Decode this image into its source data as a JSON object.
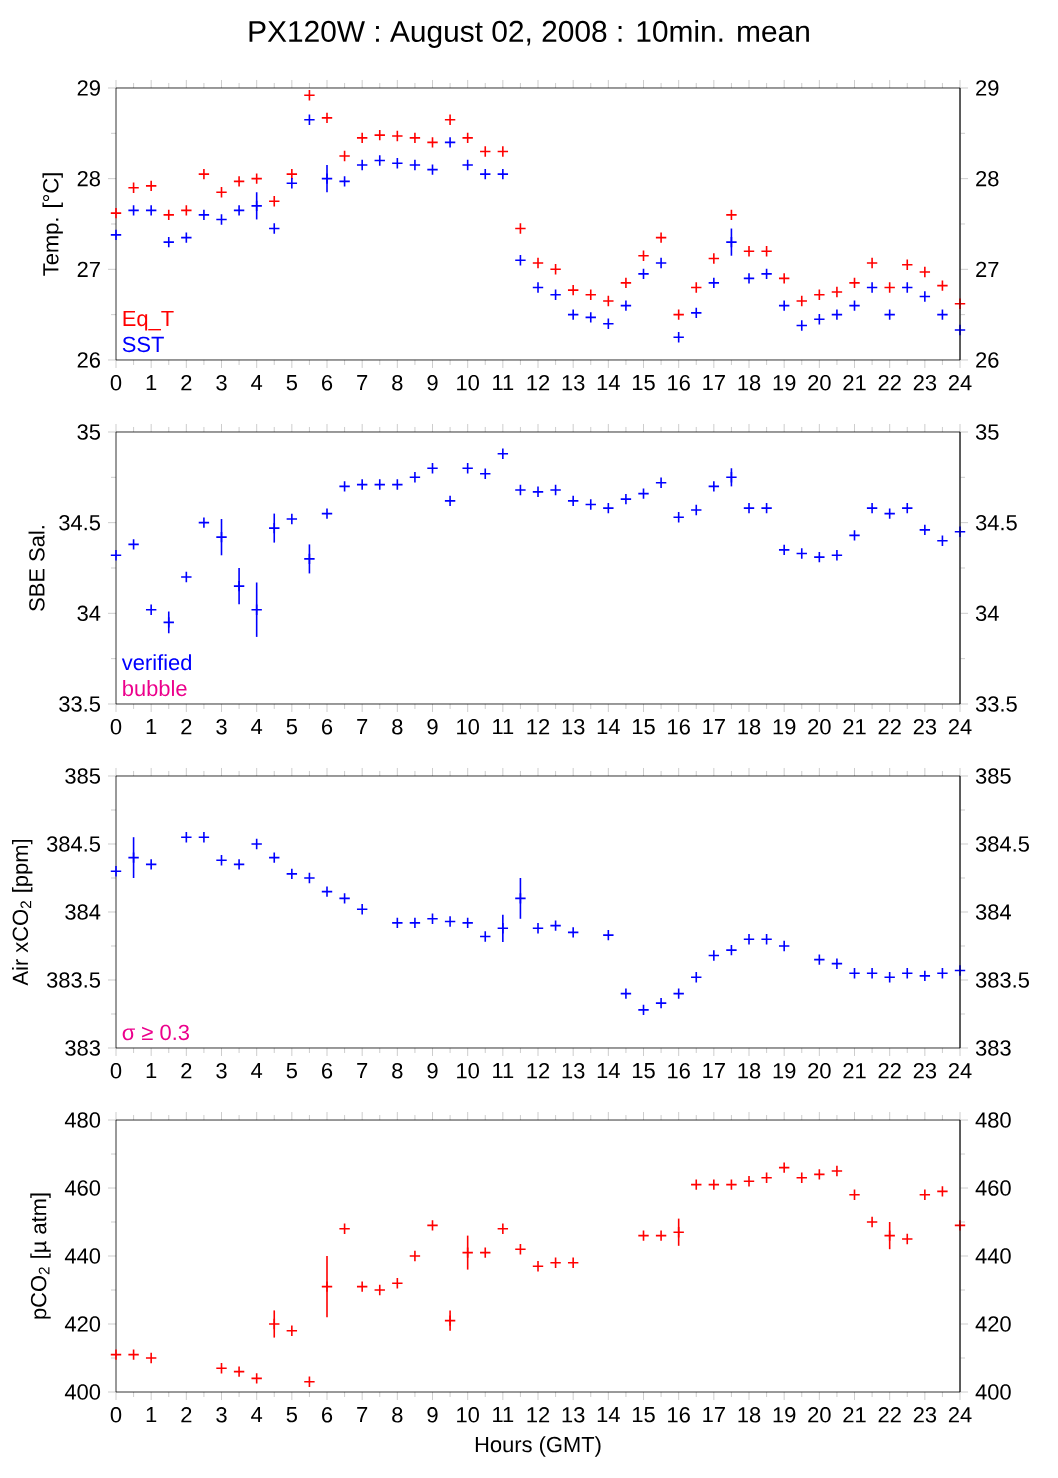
{
  "chart_data": [
    {
      "type": "scatter",
      "title": "PX120W : August 02, 2008 : 10min. mean",
      "ylabel": "Temp. [°C]",
      "marker": "cross",
      "legend": "bottom left",
      "x": [
        0,
        0.5,
        1,
        1.5,
        2,
        2.5,
        3,
        3.5,
        4,
        4.5,
        5,
        5.5,
        6,
        6.5,
        7,
        7.5,
        8,
        8.5,
        9,
        9.5,
        10,
        10.5,
        11,
        11.5,
        12,
        12.5,
        13,
        13.5,
        14,
        14.5,
        15,
        15.5,
        16,
        16.5,
        17,
        17.5,
        18,
        18.5,
        19,
        19.5,
        20,
        20.5,
        21,
        21.5,
        22,
        22.5,
        23,
        23.5,
        24
      ],
      "xlim": [
        0,
        24
      ],
      "xticks": [
        0,
        1,
        2,
        3,
        4,
        5,
        6,
        7,
        8,
        9,
        10,
        11,
        12,
        13,
        14,
        15,
        16,
        17,
        18,
        19,
        20,
        21,
        22,
        23,
        24
      ],
      "ylim": [
        26,
        29
      ],
      "yticks": [
        26,
        27,
        28,
        29
      ],
      "y2lim": [
        26,
        29
      ],
      "y2ticks": [
        26,
        27,
        28,
        29
      ],
      "series": [
        {
          "name": "Eq_T",
          "color": "#ff0000",
          "values": [
            27.62,
            27.9,
            27.92,
            27.6,
            27.65,
            28.05,
            27.85,
            27.97,
            28.0,
            27.75,
            28.05,
            28.92,
            28.67,
            28.25,
            28.45,
            28.48,
            28.47,
            28.45,
            28.4,
            28.65,
            28.45,
            28.3,
            28.3,
            27.45,
            27.07,
            27.0,
            26.77,
            26.72,
            26.65,
            26.85,
            27.15,
            27.35,
            26.5,
            26.8,
            27.12,
            27.6,
            27.2,
            27.2,
            26.9,
            26.65,
            26.72,
            26.75,
            26.85,
            27.07,
            26.8,
            27.05,
            26.97,
            26.82,
            26.62
          ]
        },
        {
          "name": "SST",
          "color": "#0000ff",
          "values": [
            27.38,
            27.65,
            27.65,
            27.3,
            27.35,
            27.6,
            27.55,
            27.65,
            27.7,
            27.45,
            27.95,
            28.65,
            28.0,
            27.97,
            28.15,
            28.2,
            28.17,
            28.15,
            28.1,
            28.4,
            28.15,
            28.05,
            28.05,
            27.1,
            26.8,
            26.72,
            26.5,
            26.47,
            26.4,
            26.6,
            26.95,
            27.07,
            26.25,
            26.52,
            26.85,
            27.3,
            26.9,
            26.95,
            26.6,
            26.38,
            26.45,
            26.5,
            26.6,
            26.8,
            26.5,
            26.8,
            26.7,
            26.5,
            26.33
          ],
          "errors": [
            null,
            null,
            null,
            null,
            null,
            null,
            null,
            null,
            0.15,
            null,
            null,
            null,
            0.15,
            null,
            null,
            null,
            null,
            null,
            null,
            null,
            null,
            null,
            null,
            null,
            null,
            null,
            null,
            null,
            null,
            null,
            null,
            null,
            null,
            null,
            null,
            0.15,
            null,
            null,
            null,
            null,
            null,
            null,
            null,
            null,
            null,
            null,
            null,
            null,
            null
          ]
        }
      ]
    },
    {
      "type": "scatter",
      "ylabel": "SBE Sal.",
      "marker": "cross",
      "legend": "bottom left",
      "annotations": [
        "bubble"
      ],
      "x": [
        0,
        0.5,
        1,
        1.5,
        2,
        2.5,
        3,
        3.5,
        4,
        4.5,
        5,
        5.5,
        6,
        6.5,
        7,
        7.5,
        8,
        8.5,
        9,
        9.5,
        10,
        10.5,
        11,
        11.5,
        12,
        12.5,
        13,
        13.5,
        14,
        14.5,
        15,
        15.5,
        16,
        16.5,
        17,
        17.5,
        18,
        18.5,
        19,
        19.5,
        20,
        20.5,
        21,
        21.5,
        22,
        22.5,
        23,
        23.5,
        24
      ],
      "xlim": [
        0,
        24
      ],
      "xticks": [
        0,
        1,
        2,
        3,
        4,
        5,
        6,
        7,
        8,
        9,
        10,
        11,
        12,
        13,
        14,
        15,
        16,
        17,
        18,
        19,
        20,
        21,
        22,
        23,
        24
      ],
      "ylim": [
        33.5,
        35
      ],
      "yticks": [
        33.5,
        34,
        34.5,
        35
      ],
      "y2lim": [
        33.5,
        35
      ],
      "y2ticks": [
        33.5,
        34,
        34.5,
        35
      ],
      "series": [
        {
          "name": "verified",
          "color": "#0000ff",
          "values": [
            34.32,
            34.38,
            34.02,
            33.95,
            34.2,
            34.5,
            34.42,
            34.15,
            34.02,
            34.47,
            34.52,
            34.3,
            34.55,
            34.7,
            34.71,
            34.71,
            34.71,
            34.75,
            34.8,
            34.62,
            34.8,
            34.77,
            34.88,
            34.68,
            34.67,
            34.68,
            34.62,
            34.6,
            34.58,
            34.63,
            34.66,
            34.72,
            34.53,
            34.57,
            34.7,
            34.75,
            34.58,
            34.58,
            34.35,
            34.33,
            34.31,
            34.32,
            34.43,
            34.58,
            34.55,
            34.58,
            34.46,
            34.4,
            34.45
          ],
          "errors": [
            null,
            null,
            null,
            0.06,
            null,
            null,
            0.1,
            0.1,
            0.15,
            0.08,
            null,
            0.08,
            null,
            null,
            null,
            null,
            null,
            null,
            null,
            null,
            null,
            null,
            null,
            null,
            null,
            null,
            null,
            null,
            null,
            null,
            null,
            null,
            null,
            null,
            null,
            0.05,
            null,
            null,
            null,
            null,
            null,
            null,
            null,
            null,
            null,
            null,
            null,
            null,
            null
          ]
        }
      ]
    },
    {
      "type": "scatter",
      "ylabel": "Air xCO$_{2}$ [ppm]",
      "marker": "cross",
      "annotations": [
        "σ ≥ 0.3"
      ],
      "x": [
        0,
        0.5,
        1,
        1.5,
        2,
        2.5,
        3,
        3.5,
        4,
        4.5,
        5,
        5.5,
        6,
        6.5,
        7,
        7.5,
        8,
        8.5,
        9,
        9.5,
        10,
        10.5,
        11,
        11.5,
        12,
        12.5,
        13,
        13.5,
        14,
        14.5,
        15,
        15.5,
        16,
        16.5,
        17,
        17.5,
        18,
        18.5,
        19,
        19.5,
        20,
        20.5,
        21,
        21.5,
        22,
        22.5,
        23,
        23.5,
        24
      ],
      "xlim": [
        0,
        24
      ],
      "xticks": [
        0,
        1,
        2,
        3,
        4,
        5,
        6,
        7,
        8,
        9,
        10,
        11,
        12,
        13,
        14,
        15,
        16,
        17,
        18,
        19,
        20,
        21,
        22,
        23,
        24
      ],
      "ylim": [
        383,
        385
      ],
      "yticks": [
        383,
        383.5,
        384,
        384.5,
        385
      ],
      "y2lim": [
        383,
        385
      ],
      "y2ticks": [
        383,
        383.5,
        384,
        384.5,
        385
      ],
      "series": [
        {
          "color": "#0000ff",
          "values": [
            384.3,
            384.4,
            384.35,
            null,
            384.55,
            384.55,
            384.38,
            384.35,
            384.5,
            384.4,
            384.28,
            384.25,
            384.15,
            384.1,
            384.02,
            null,
            383.92,
            383.92,
            383.95,
            383.93,
            383.92,
            383.82,
            383.88,
            384.1,
            383.88,
            383.9,
            383.85,
            null,
            383.83,
            383.4,
            383.28,
            383.33,
            383.4,
            383.52,
            383.68,
            383.72,
            383.8,
            383.8,
            383.75,
            null,
            383.65,
            383.62,
            383.55,
            383.55,
            383.52,
            383.55,
            383.53,
            383.55,
            383.57
          ],
          "errors": [
            null,
            0.15,
            null,
            null,
            null,
            null,
            null,
            null,
            null,
            null,
            null,
            null,
            null,
            null,
            null,
            null,
            null,
            null,
            null,
            null,
            null,
            null,
            0.1,
            0.15,
            null,
            null,
            null,
            null,
            null,
            null,
            null,
            null,
            null,
            null,
            null,
            null,
            null,
            null,
            null,
            null,
            null,
            null,
            null,
            null,
            null,
            null,
            null,
            null,
            null
          ]
        }
      ]
    },
    {
      "type": "scatter",
      "ylabel": "pCO$_{2}$ [µ atm]",
      "xlabel": "Hours (GMT)",
      "marker": "cross",
      "x": [
        0,
        0.5,
        1,
        1.5,
        2,
        2.5,
        3,
        3.5,
        4,
        4.5,
        5,
        5.5,
        6,
        6.5,
        7,
        7.5,
        8,
        8.5,
        9,
        9.5,
        10,
        10.5,
        11,
        11.5,
        12,
        12.5,
        13,
        13.5,
        14,
        14.5,
        15,
        15.5,
        16,
        16.5,
        17,
        17.5,
        18,
        18.5,
        19,
        19.5,
        20,
        20.5,
        21,
        21.5,
        22,
        22.5,
        23,
        23.5,
        24
      ],
      "xlim": [
        0,
        24
      ],
      "xticks": [
        0,
        1,
        2,
        3,
        4,
        5,
        6,
        7,
        8,
        9,
        10,
        11,
        12,
        13,
        14,
        15,
        16,
        17,
        18,
        19,
        20,
        21,
        22,
        23,
        24
      ],
      "ylim": [
        400,
        480
      ],
      "yticks": [
        400,
        420,
        440,
        460,
        480
      ],
      "y2lim": [
        400,
        480
      ],
      "y2ticks": [
        400,
        420,
        440,
        460,
        480
      ],
      "series": [
        {
          "color": "#ff0000",
          "values": [
            411,
            411,
            410,
            null,
            null,
            null,
            407,
            406,
            404,
            420,
            418,
            403,
            431,
            448,
            431,
            430,
            432,
            440,
            449,
            421,
            441,
            441,
            448,
            442,
            437,
            438,
            438,
            null,
            null,
            null,
            446,
            446,
            447,
            461,
            461,
            461,
            462,
            463,
            466,
            463,
            464,
            465,
            458,
            450,
            446,
            445,
            458,
            459,
            449
          ],
          "errors": [
            null,
            null,
            null,
            null,
            null,
            null,
            null,
            null,
            null,
            4,
            null,
            null,
            9,
            null,
            null,
            null,
            null,
            null,
            null,
            3,
            5,
            null,
            null,
            null,
            null,
            null,
            null,
            null,
            null,
            null,
            null,
            null,
            4,
            null,
            null,
            null,
            null,
            null,
            null,
            null,
            null,
            null,
            null,
            null,
            4,
            null,
            null,
            null,
            null
          ]
        }
      ]
    }
  ]
}
